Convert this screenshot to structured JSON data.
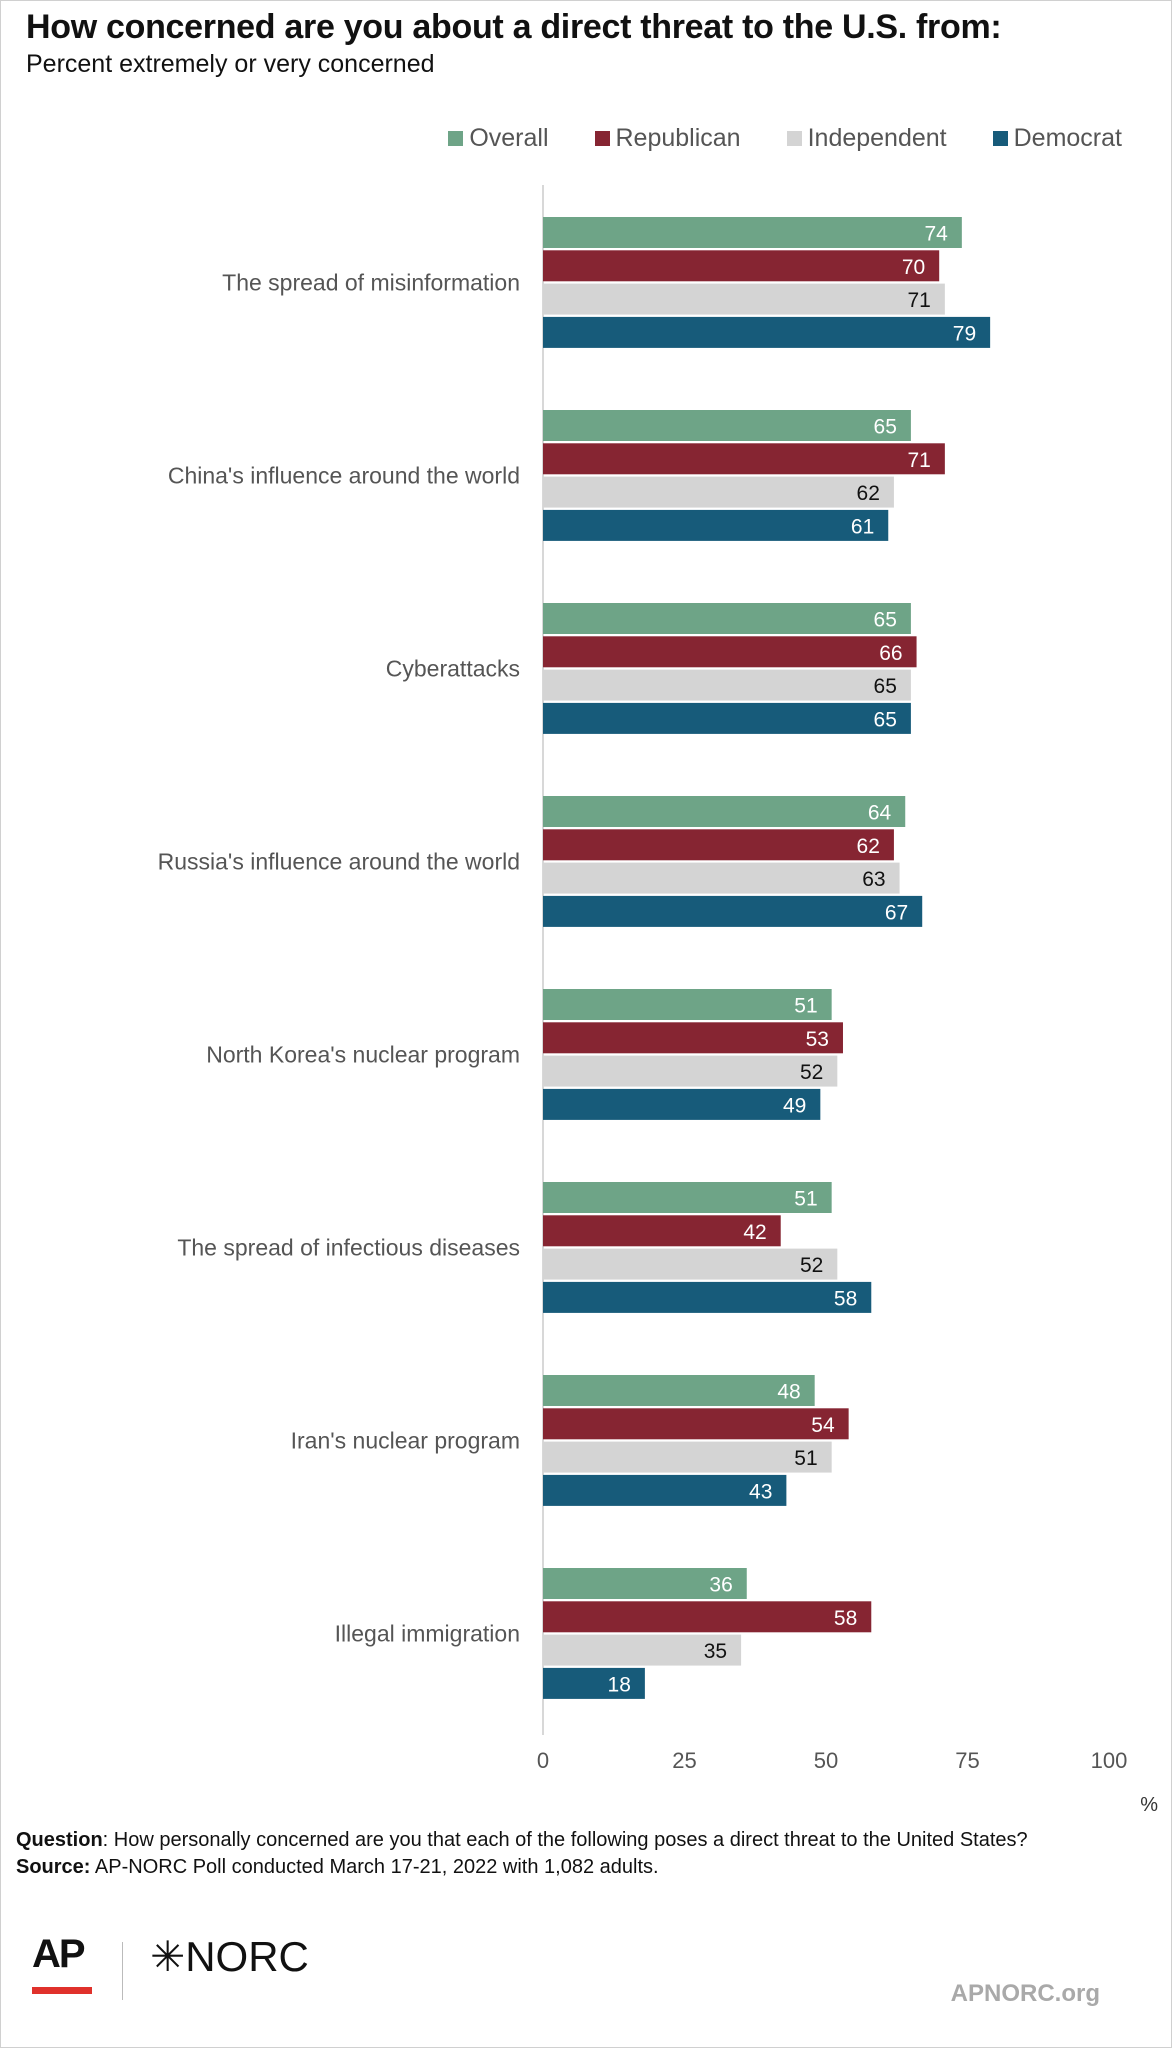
{
  "header": {
    "title": "How concerned are you about a direct threat to the U.S. from:",
    "subtitle": "Percent extremely or very concerned"
  },
  "legend": [
    {
      "name": "Overall",
      "color": "#6ea487"
    },
    {
      "name": "Republican",
      "color": "#862532"
    },
    {
      "name": "Independent",
      "color": "#d4d4d4"
    },
    {
      "name": "Democrat",
      "color": "#175b7a"
    }
  ],
  "chart_data": {
    "type": "bar",
    "orientation": "horizontal",
    "categories": [
      "The spread of misinformation",
      "China's influence around the world",
      "Cyberattacks",
      "Russia's influence around the world",
      "North Korea's nuclear program",
      "The spread of infectious diseases",
      "Iran's nuclear program",
      "Illegal immigration"
    ],
    "series": [
      {
        "name": "Overall",
        "color": "#6ea487",
        "label_color": "#ffffff",
        "values": [
          74,
          65,
          65,
          64,
          51,
          51,
          48,
          36
        ]
      },
      {
        "name": "Republican",
        "color": "#862532",
        "label_color": "#ffffff",
        "values": [
          70,
          71,
          66,
          62,
          53,
          42,
          54,
          58
        ]
      },
      {
        "name": "Independent",
        "color": "#d4d4d4",
        "label_color": "#111111",
        "values": [
          71,
          62,
          65,
          63,
          52,
          52,
          51,
          35
        ]
      },
      {
        "name": "Democrat",
        "color": "#175b7a",
        "label_color": "#ffffff",
        "values": [
          79,
          61,
          65,
          67,
          49,
          58,
          43,
          18
        ]
      }
    ],
    "xlim": [
      0,
      100
    ],
    "xticks": [
      "0",
      "25",
      "50",
      "75",
      "100"
    ],
    "xunit": "%",
    "grid": false,
    "legend_position": "top-right"
  },
  "footer": {
    "question_label": "Question",
    "question_text": ": How personally concerned are you that each of the following poses a direct threat to the United States?",
    "source_label": "Source:",
    "source_text": " AP-NORC Poll conducted March 17-21, 2022 with 1,082 adults.",
    "logo_ap": "AP",
    "logo_norc": "✳NORC",
    "site": "APNORC.org"
  }
}
